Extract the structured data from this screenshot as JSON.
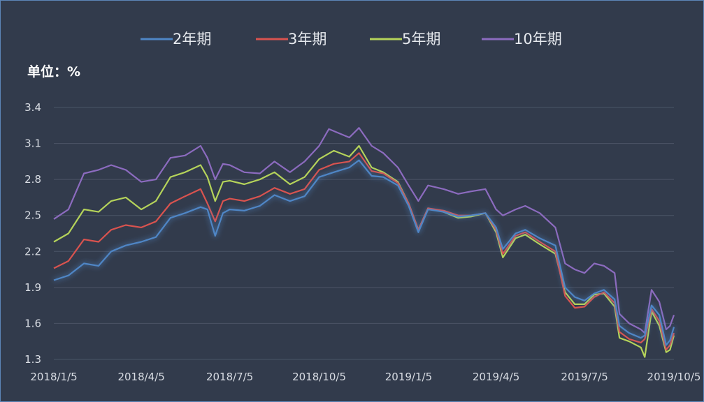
{
  "chart_data": {
    "type": "line",
    "unit_label": "单位：%",
    "legend_position": "top",
    "grid": "horizontal",
    "ylim": [
      1.3,
      3.4
    ],
    "yticks": [
      "3.4",
      "3.1",
      "2.8",
      "2.5",
      "2.2",
      "1.9",
      "1.6",
      "1.3"
    ],
    "xlim": [
      "2018-01-05",
      "2019-10-05"
    ],
    "xticks": [
      "2018/1/5",
      "2018/4/5",
      "2018/7/5",
      "2018/10/5",
      "2019/1/5",
      "2019/4/5",
      "2019/7/5",
      "2019/10/5"
    ],
    "series": [
      {
        "name": "2年期",
        "color": "#4f86c6",
        "glow": true,
        "points": [
          [
            "2018-01-05",
            1.96
          ],
          [
            "2018-01-20",
            2.0
          ],
          [
            "2018-02-05",
            2.1
          ],
          [
            "2018-02-20",
            2.08
          ],
          [
            "2018-03-05",
            2.2
          ],
          [
            "2018-03-20",
            2.25
          ],
          [
            "2018-04-05",
            2.28
          ],
          [
            "2018-04-20",
            2.32
          ],
          [
            "2018-05-05",
            2.48
          ],
          [
            "2018-05-20",
            2.52
          ],
          [
            "2018-06-05",
            2.57
          ],
          [
            "2018-06-12",
            2.55
          ],
          [
            "2018-06-20",
            2.33
          ],
          [
            "2018-06-28",
            2.52
          ],
          [
            "2018-07-05",
            2.55
          ],
          [
            "2018-07-20",
            2.54
          ],
          [
            "2018-08-05",
            2.58
          ],
          [
            "2018-08-20",
            2.67
          ],
          [
            "2018-09-05",
            2.62
          ],
          [
            "2018-09-20",
            2.66
          ],
          [
            "2018-10-05",
            2.82
          ],
          [
            "2018-10-20",
            2.86
          ],
          [
            "2018-11-05",
            2.9
          ],
          [
            "2018-11-15",
            2.96
          ],
          [
            "2018-11-28",
            2.83
          ],
          [
            "2018-12-10",
            2.82
          ],
          [
            "2018-12-25",
            2.75
          ],
          [
            "2019-01-05",
            2.58
          ],
          [
            "2019-01-15",
            2.36
          ],
          [
            "2019-01-25",
            2.55
          ],
          [
            "2019-02-10",
            2.53
          ],
          [
            "2019-02-25",
            2.49
          ],
          [
            "2019-03-10",
            2.5
          ],
          [
            "2019-03-25",
            2.52
          ],
          [
            "2019-04-05",
            2.4
          ],
          [
            "2019-04-12",
            2.22
          ],
          [
            "2019-04-25",
            2.35
          ],
          [
            "2019-05-05",
            2.38
          ],
          [
            "2019-05-20",
            2.31
          ],
          [
            "2019-06-05",
            2.25
          ],
          [
            "2019-06-15",
            1.9
          ],
          [
            "2019-06-25",
            1.82
          ],
          [
            "2019-07-05",
            1.79
          ],
          [
            "2019-07-15",
            1.85
          ],
          [
            "2019-07-25",
            1.88
          ],
          [
            "2019-08-05",
            1.8
          ],
          [
            "2019-08-10",
            1.58
          ],
          [
            "2019-08-20",
            1.52
          ],
          [
            "2019-09-01",
            1.48
          ],
          [
            "2019-09-05",
            1.5
          ],
          [
            "2019-09-12",
            1.75
          ],
          [
            "2019-09-20",
            1.67
          ],
          [
            "2019-09-27",
            1.42
          ],
          [
            "2019-10-01",
            1.46
          ],
          [
            "2019-10-05",
            1.57
          ]
        ]
      },
      {
        "name": "3年期",
        "color": "#d9534f",
        "glow": false,
        "points": [
          [
            "2018-01-05",
            2.06
          ],
          [
            "2018-01-20",
            2.12
          ],
          [
            "2018-02-05",
            2.3
          ],
          [
            "2018-02-20",
            2.28
          ],
          [
            "2018-03-05",
            2.38
          ],
          [
            "2018-03-20",
            2.42
          ],
          [
            "2018-04-05",
            2.4
          ],
          [
            "2018-04-20",
            2.45
          ],
          [
            "2018-05-05",
            2.6
          ],
          [
            "2018-05-20",
            2.66
          ],
          [
            "2018-06-05",
            2.72
          ],
          [
            "2018-06-12",
            2.6
          ],
          [
            "2018-06-20",
            2.45
          ],
          [
            "2018-06-28",
            2.62
          ],
          [
            "2018-07-05",
            2.64
          ],
          [
            "2018-07-20",
            2.62
          ],
          [
            "2018-08-05",
            2.66
          ],
          [
            "2018-08-20",
            2.73
          ],
          [
            "2018-09-05",
            2.68
          ],
          [
            "2018-09-20",
            2.72
          ],
          [
            "2018-10-05",
            2.88
          ],
          [
            "2018-10-20",
            2.93
          ],
          [
            "2018-11-05",
            2.95
          ],
          [
            "2018-11-15",
            3.02
          ],
          [
            "2018-11-28",
            2.87
          ],
          [
            "2018-12-10",
            2.85
          ],
          [
            "2018-12-25",
            2.77
          ],
          [
            "2019-01-05",
            2.6
          ],
          [
            "2019-01-15",
            2.38
          ],
          [
            "2019-01-25",
            2.56
          ],
          [
            "2019-02-10",
            2.54
          ],
          [
            "2019-02-25",
            2.5
          ],
          [
            "2019-03-10",
            2.5
          ],
          [
            "2019-03-25",
            2.52
          ],
          [
            "2019-04-05",
            2.38
          ],
          [
            "2019-04-12",
            2.18
          ],
          [
            "2019-04-25",
            2.33
          ],
          [
            "2019-05-05",
            2.36
          ],
          [
            "2019-05-20",
            2.28
          ],
          [
            "2019-06-05",
            2.2
          ],
          [
            "2019-06-15",
            1.83
          ],
          [
            "2019-06-25",
            1.73
          ],
          [
            "2019-07-05",
            1.74
          ],
          [
            "2019-07-15",
            1.82
          ],
          [
            "2019-07-25",
            1.86
          ],
          [
            "2019-08-05",
            1.77
          ],
          [
            "2019-08-10",
            1.53
          ],
          [
            "2019-08-20",
            1.47
          ],
          [
            "2019-09-01",
            1.44
          ],
          [
            "2019-09-05",
            1.47
          ],
          [
            "2019-09-12",
            1.72
          ],
          [
            "2019-09-20",
            1.62
          ],
          [
            "2019-09-27",
            1.38
          ],
          [
            "2019-10-01",
            1.42
          ],
          [
            "2019-10-05",
            1.52
          ]
        ]
      },
      {
        "name": "5年期",
        "color": "#b5d35a",
        "glow": false,
        "points": [
          [
            "2018-01-05",
            2.28
          ],
          [
            "2018-01-20",
            2.35
          ],
          [
            "2018-02-05",
            2.55
          ],
          [
            "2018-02-20",
            2.53
          ],
          [
            "2018-03-05",
            2.62
          ],
          [
            "2018-03-20",
            2.65
          ],
          [
            "2018-04-05",
            2.55
          ],
          [
            "2018-04-20",
            2.62
          ],
          [
            "2018-05-05",
            2.82
          ],
          [
            "2018-05-20",
            2.86
          ],
          [
            "2018-06-05",
            2.92
          ],
          [
            "2018-06-12",
            2.82
          ],
          [
            "2018-06-20",
            2.62
          ],
          [
            "2018-06-28",
            2.78
          ],
          [
            "2018-07-05",
            2.79
          ],
          [
            "2018-07-20",
            2.76
          ],
          [
            "2018-08-05",
            2.8
          ],
          [
            "2018-08-20",
            2.86
          ],
          [
            "2018-09-05",
            2.76
          ],
          [
            "2018-09-20",
            2.82
          ],
          [
            "2018-10-05",
            2.97
          ],
          [
            "2018-10-20",
            3.04
          ],
          [
            "2018-11-05",
            2.99
          ],
          [
            "2018-11-15",
            3.08
          ],
          [
            "2018-11-28",
            2.9
          ],
          [
            "2018-12-10",
            2.86
          ],
          [
            "2018-12-25",
            2.78
          ],
          [
            "2019-01-05",
            2.6
          ],
          [
            "2019-01-15",
            2.38
          ],
          [
            "2019-01-25",
            2.56
          ],
          [
            "2019-02-10",
            2.53
          ],
          [
            "2019-02-25",
            2.48
          ],
          [
            "2019-03-10",
            2.49
          ],
          [
            "2019-03-25",
            2.52
          ],
          [
            "2019-04-05",
            2.36
          ],
          [
            "2019-04-12",
            2.15
          ],
          [
            "2019-04-25",
            2.31
          ],
          [
            "2019-05-05",
            2.34
          ],
          [
            "2019-05-20",
            2.26
          ],
          [
            "2019-06-05",
            2.18
          ],
          [
            "2019-06-15",
            1.86
          ],
          [
            "2019-06-25",
            1.76
          ],
          [
            "2019-07-05",
            1.76
          ],
          [
            "2019-07-15",
            1.84
          ],
          [
            "2019-07-25",
            1.85
          ],
          [
            "2019-08-05",
            1.74
          ],
          [
            "2019-08-10",
            1.48
          ],
          [
            "2019-08-20",
            1.45
          ],
          [
            "2019-09-01",
            1.4
          ],
          [
            "2019-09-05",
            1.32
          ],
          [
            "2019-09-12",
            1.7
          ],
          [
            "2019-09-20",
            1.58
          ],
          [
            "2019-09-27",
            1.36
          ],
          [
            "2019-10-01",
            1.38
          ],
          [
            "2019-10-05",
            1.5
          ]
        ]
      },
      {
        "name": "10年期",
        "color": "#8c6bbf",
        "glow": false,
        "points": [
          [
            "2018-01-05",
            2.47
          ],
          [
            "2018-01-20",
            2.55
          ],
          [
            "2018-02-05",
            2.85
          ],
          [
            "2018-02-20",
            2.88
          ],
          [
            "2018-03-05",
            2.92
          ],
          [
            "2018-03-20",
            2.88
          ],
          [
            "2018-04-05",
            2.78
          ],
          [
            "2018-04-20",
            2.8
          ],
          [
            "2018-05-05",
            2.98
          ],
          [
            "2018-05-20",
            3.0
          ],
          [
            "2018-06-05",
            3.08
          ],
          [
            "2018-06-12",
            2.98
          ],
          [
            "2018-06-20",
            2.8
          ],
          [
            "2018-06-28",
            2.93
          ],
          [
            "2018-07-05",
            2.92
          ],
          [
            "2018-07-20",
            2.86
          ],
          [
            "2018-08-05",
            2.85
          ],
          [
            "2018-08-20",
            2.95
          ],
          [
            "2018-09-05",
            2.86
          ],
          [
            "2018-09-20",
            2.95
          ],
          [
            "2018-10-05",
            3.08
          ],
          [
            "2018-10-15",
            3.22
          ],
          [
            "2018-11-05",
            3.15
          ],
          [
            "2018-11-15",
            3.23
          ],
          [
            "2018-11-28",
            3.08
          ],
          [
            "2018-12-10",
            3.02
          ],
          [
            "2018-12-25",
            2.9
          ],
          [
            "2019-01-05",
            2.75
          ],
          [
            "2019-01-15",
            2.62
          ],
          [
            "2019-01-25",
            2.75
          ],
          [
            "2019-02-10",
            2.72
          ],
          [
            "2019-02-25",
            2.68
          ],
          [
            "2019-03-10",
            2.7
          ],
          [
            "2019-03-25",
            2.72
          ],
          [
            "2019-04-05",
            2.55
          ],
          [
            "2019-04-12",
            2.5
          ],
          [
            "2019-04-25",
            2.55
          ],
          [
            "2019-05-05",
            2.58
          ],
          [
            "2019-05-20",
            2.52
          ],
          [
            "2019-06-05",
            2.4
          ],
          [
            "2019-06-15",
            2.1
          ],
          [
            "2019-06-25",
            2.05
          ],
          [
            "2019-07-05",
            2.02
          ],
          [
            "2019-07-15",
            2.1
          ],
          [
            "2019-07-25",
            2.08
          ],
          [
            "2019-08-05",
            2.02
          ],
          [
            "2019-08-10",
            1.68
          ],
          [
            "2019-08-20",
            1.6
          ],
          [
            "2019-09-01",
            1.55
          ],
          [
            "2019-09-05",
            1.52
          ],
          [
            "2019-09-12",
            1.88
          ],
          [
            "2019-09-20",
            1.78
          ],
          [
            "2019-09-27",
            1.55
          ],
          [
            "2019-10-01",
            1.58
          ],
          [
            "2019-10-05",
            1.67
          ]
        ]
      }
    ]
  }
}
